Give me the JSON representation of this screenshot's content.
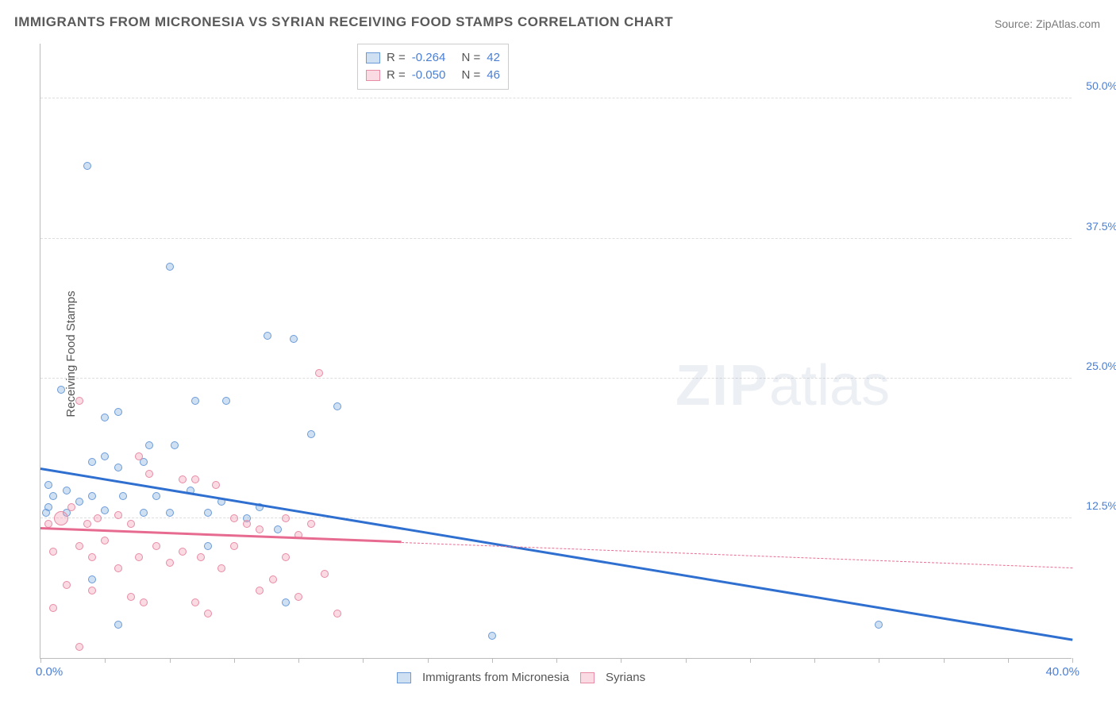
{
  "header": {
    "title": "IMMIGRANTS FROM MICRONESIA VS SYRIAN RECEIVING FOOD STAMPS CORRELATION CHART",
    "source": "Source: ZipAtlas.com"
  },
  "watermark": {
    "zip": "ZIP",
    "rest": "atlas"
  },
  "chart": {
    "type": "scatter",
    "y_label": "Receiving Food Stamps",
    "xlim": [
      0,
      40
    ],
    "ylim": [
      0,
      55
    ],
    "x_ticks": {
      "min_label": "0.0%",
      "max_label": "40.0%"
    },
    "x_minor_tick_step": 2.5,
    "y_grid": [
      {
        "v": 12.5,
        "label": "12.5%"
      },
      {
        "v": 25.0,
        "label": "25.0%"
      },
      {
        "v": 37.5,
        "label": "37.5%"
      },
      {
        "v": 50.0,
        "label": "50.0%"
      }
    ],
    "series": [
      {
        "name": "Immigrants from Micronesia",
        "fill": "rgba(120,165,220,0.35)",
        "stroke": "#6a9bd8",
        "line_color": "#2f6fd0",
        "R": "-0.264",
        "N": "42",
        "points": [
          [
            1.8,
            44.0
          ],
          [
            5.0,
            35.0
          ],
          [
            8.8,
            28.8
          ],
          [
            9.8,
            28.5
          ],
          [
            0.8,
            24.0
          ],
          [
            4.0,
            17.5
          ],
          [
            11.5,
            22.5
          ],
          [
            2.5,
            21.5
          ],
          [
            6.0,
            23.0
          ],
          [
            7.2,
            23.0
          ],
          [
            4.2,
            19.0
          ],
          [
            5.2,
            19.0
          ],
          [
            10.5,
            20.0
          ],
          [
            3.0,
            22.0
          ],
          [
            5.8,
            15.0
          ],
          [
            3.0,
            17.0
          ],
          [
            2.0,
            17.5
          ],
          [
            2.5,
            18.0
          ],
          [
            0.5,
            14.5
          ],
          [
            0.3,
            13.5
          ],
          [
            1.0,
            13.0
          ],
          [
            1.5,
            14.0
          ],
          [
            2.0,
            14.5
          ],
          [
            2.5,
            13.2
          ],
          [
            3.2,
            14.5
          ],
          [
            4.0,
            13.0
          ],
          [
            4.5,
            14.5
          ],
          [
            5.0,
            13.0
          ],
          [
            6.5,
            13.0
          ],
          [
            7.0,
            14.0
          ],
          [
            8.0,
            12.5
          ],
          [
            8.5,
            13.5
          ],
          [
            9.2,
            11.5
          ],
          [
            9.5,
            5.0
          ],
          [
            2.0,
            7.0
          ],
          [
            3.0,
            3.0
          ],
          [
            17.5,
            2.0
          ],
          [
            32.5,
            3.0
          ],
          [
            6.5,
            10.0
          ],
          [
            1.0,
            15.0
          ],
          [
            0.3,
            15.5
          ],
          [
            0.2,
            13.0
          ]
        ],
        "trend": {
          "x1": 0,
          "y1": 16.8,
          "x2": 40,
          "y2": 1.5,
          "solid_until_x": 40
        }
      },
      {
        "name": "Syrians",
        "fill": "rgba(240,150,175,0.35)",
        "stroke": "#e88ba5",
        "line_color": "#e76b90",
        "R": "-0.050",
        "N": "46",
        "points": [
          [
            10.8,
            25.5
          ],
          [
            1.5,
            23.0
          ],
          [
            3.8,
            18.0
          ],
          [
            4.2,
            16.5
          ],
          [
            5.5,
            16.0
          ],
          [
            6.0,
            16.0
          ],
          [
            6.8,
            15.5
          ],
          [
            1.2,
            13.5
          ],
          [
            0.8,
            12.5,
            18
          ],
          [
            0.3,
            12.0
          ],
          [
            1.8,
            12.0
          ],
          [
            2.2,
            12.5
          ],
          [
            3.0,
            12.8
          ],
          [
            3.5,
            12.0
          ],
          [
            7.5,
            12.5
          ],
          [
            8.0,
            12.0
          ],
          [
            8.5,
            11.5
          ],
          [
            9.5,
            12.5
          ],
          [
            10.0,
            11.0
          ],
          [
            10.5,
            12.0
          ],
          [
            0.5,
            9.5
          ],
          [
            1.5,
            10.0
          ],
          [
            2.0,
            9.0
          ],
          [
            2.5,
            10.5
          ],
          [
            3.0,
            8.0
          ],
          [
            3.8,
            9.0
          ],
          [
            4.5,
            10.0
          ],
          [
            5.0,
            8.5
          ],
          [
            5.5,
            9.5
          ],
          [
            6.2,
            9.0
          ],
          [
            7.0,
            8.0
          ],
          [
            7.5,
            10.0
          ],
          [
            8.5,
            6.0
          ],
          [
            9.0,
            7.0
          ],
          [
            10.0,
            5.5
          ],
          [
            11.0,
            7.5
          ],
          [
            11.5,
            4.0
          ],
          [
            4.0,
            5.0
          ],
          [
            2.0,
            6.0
          ],
          [
            0.5,
            4.5
          ],
          [
            1.0,
            6.5
          ],
          [
            1.5,
            1.0
          ],
          [
            6.0,
            5.0
          ],
          [
            6.5,
            4.0
          ],
          [
            3.5,
            5.5
          ],
          [
            9.5,
            9.0
          ]
        ],
        "trend": {
          "x1": 0,
          "y1": 11.5,
          "x2": 40,
          "y2": 8.0,
          "solid_until_x": 14.0
        }
      }
    ]
  },
  "legend_bottom": {
    "s1_label": "Immigrants from Micronesia",
    "s2_label": "Syrians"
  },
  "legend_top": {
    "r_label": "R =",
    "n_label": "N ="
  }
}
